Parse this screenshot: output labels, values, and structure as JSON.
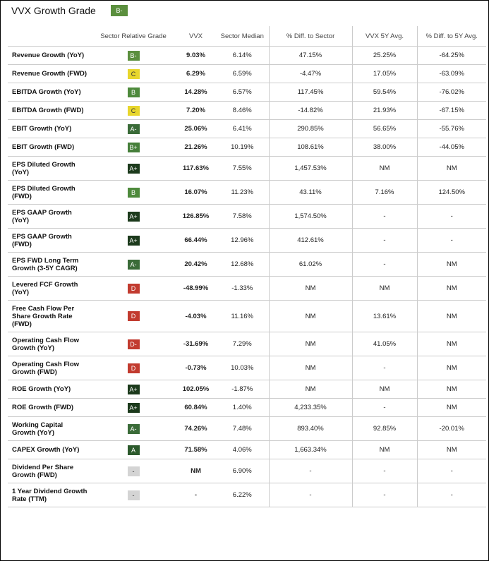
{
  "title": "VVX Growth Grade",
  "title_grade": {
    "label": "B-",
    "color": "#5b8f3e"
  },
  "columns": [
    "Sector Relative Grade",
    "VVX",
    "Sector Median",
    "% Diff. to Sector",
    "VVX 5Y Avg.",
    "% Diff. to 5Y Avg."
  ],
  "rows": [
    {
      "metric": "Revenue Growth (YoY)",
      "grade": "B-",
      "grade_color": "#5b8f3e",
      "cells": [
        "9.03%",
        "6.14%",
        "47.15%",
        "25.25%",
        "-64.25%"
      ]
    },
    {
      "metric": "Revenue Growth (FWD)",
      "grade": "C",
      "grade_color": "#e8d62c",
      "cells": [
        "6.29%",
        "6.59%",
        "-4.47%",
        "17.05%",
        "-63.09%"
      ]
    },
    {
      "metric": "EBITDA Growth (YoY)",
      "grade": "B",
      "grade_color": "#4e8a3c",
      "cells": [
        "14.28%",
        "6.57%",
        "117.45%",
        "59.54%",
        "-76.02%"
      ]
    },
    {
      "metric": "EBITDA Growth (FWD)",
      "grade": "C",
      "grade_color": "#e8d62c",
      "cells": [
        "7.20%",
        "8.46%",
        "-14.82%",
        "21.93%",
        "-67.15%"
      ]
    },
    {
      "metric": "EBIT Growth (YoY)",
      "grade": "A-",
      "grade_color": "#3a6b38",
      "cells": [
        "25.06%",
        "6.41%",
        "290.85%",
        "56.65%",
        "-55.76%"
      ]
    },
    {
      "metric": "EBIT Growth (FWD)",
      "grade": "B+",
      "grade_color": "#467f3a",
      "cells": [
        "21.26%",
        "10.19%",
        "108.61%",
        "38.00%",
        "-44.05%"
      ]
    },
    {
      "metric": "EPS Diluted Growth (YoY)",
      "grade": "A+",
      "grade_color": "#1c3a1c",
      "cells": [
        "117.63%",
        "7.55%",
        "1,457.53%",
        "NM",
        "NM"
      ]
    },
    {
      "metric": "EPS Diluted Growth (FWD)",
      "grade": "B",
      "grade_color": "#4e8a3c",
      "cells": [
        "16.07%",
        "11.23%",
        "43.11%",
        "7.16%",
        "124.50%"
      ]
    },
    {
      "metric": "EPS GAAP Growth (YoY)",
      "grade": "A+",
      "grade_color": "#1c3a1c",
      "cells": [
        "126.85%",
        "7.58%",
        "1,574.50%",
        "-",
        "-"
      ]
    },
    {
      "metric": "EPS GAAP Growth (FWD)",
      "grade": "A+",
      "grade_color": "#1c3a1c",
      "cells": [
        "66.44%",
        "12.96%",
        "412.61%",
        "-",
        "-"
      ]
    },
    {
      "metric": "EPS FWD Long Term Growth (3-5Y CAGR)",
      "grade": "A-",
      "grade_color": "#3a6b38",
      "cells": [
        "20.42%",
        "12.68%",
        "61.02%",
        "-",
        "NM"
      ]
    },
    {
      "metric": "Levered FCF Growth (YoY)",
      "grade": "D",
      "grade_color": "#c23b2f",
      "cells": [
        "-48.99%",
        "-1.33%",
        "NM",
        "NM",
        "NM"
      ]
    },
    {
      "metric": "Free Cash Flow Per Share Growth Rate (FWD)",
      "grade": "D",
      "grade_color": "#c23b2f",
      "cells": [
        "-4.03%",
        "11.16%",
        "NM",
        "13.61%",
        "NM"
      ]
    },
    {
      "metric": "Operating Cash Flow Growth (YoY)",
      "grade": "D-",
      "grade_color": "#c23b2f",
      "cells": [
        "-31.69%",
        "7.29%",
        "NM",
        "41.05%",
        "NM"
      ]
    },
    {
      "metric": "Operating Cash Flow Growth (FWD)",
      "grade": "D",
      "grade_color": "#c23b2f",
      "cells": [
        "-0.73%",
        "10.03%",
        "NM",
        "-",
        "NM"
      ]
    },
    {
      "metric": "ROE Growth (YoY)",
      "grade": "A+",
      "grade_color": "#1c3a1c",
      "cells": [
        "102.05%",
        "-1.87%",
        "NM",
        "NM",
        "NM"
      ]
    },
    {
      "metric": "ROE Growth (FWD)",
      "grade": "A+",
      "grade_color": "#1c3a1c",
      "cells": [
        "60.84%",
        "1.40%",
        "4,233.35%",
        "-",
        "NM"
      ]
    },
    {
      "metric": "Working Capital Growth (YoY)",
      "grade": "A-",
      "grade_color": "#3a6b38",
      "cells": [
        "74.26%",
        "7.48%",
        "893.40%",
        "92.85%",
        "-20.01%"
      ]
    },
    {
      "metric": "CAPEX Growth (YoY)",
      "grade": "A",
      "grade_color": "#2c5a2c",
      "cells": [
        "71.58%",
        "4.06%",
        "1,663.34%",
        "NM",
        "NM"
      ]
    },
    {
      "metric": "Dividend Per Share Growth (FWD)",
      "grade": "-",
      "grade_color": "#d4d4d4",
      "cells": [
        "NM",
        "6.90%",
        "-",
        "-",
        "-"
      ]
    },
    {
      "metric": "1 Year Dividend Growth Rate (TTM)",
      "grade": "-",
      "grade_color": "#d4d4d4",
      "cells": [
        "-",
        "6.22%",
        "-",
        "-",
        "-"
      ]
    }
  ]
}
